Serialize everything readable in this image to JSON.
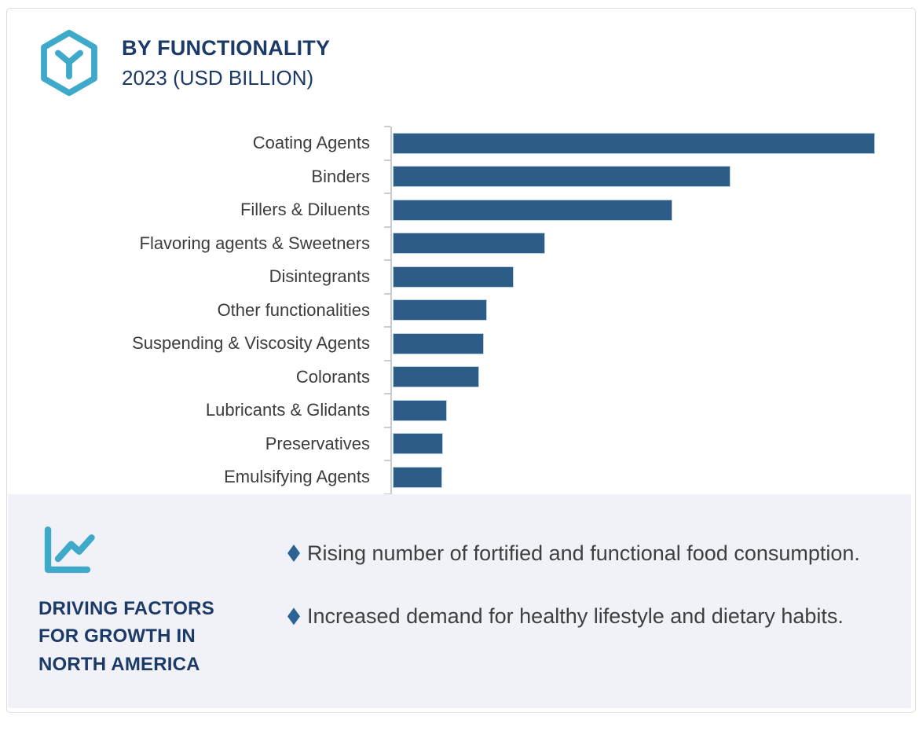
{
  "header": {
    "title": "BY FUNCTIONALITY",
    "subtitle": "2023 (USD BILLION)",
    "logo_icon": "hexagon-cube-icon"
  },
  "chart_data": {
    "type": "bar",
    "orientation": "horizontal",
    "title": "BY FUNCTIONALITY",
    "subtitle": "2023 (USD BILLION)",
    "unit": "USD Billion",
    "value_labels_shown": false,
    "value_axis_ticks_labeled": false,
    "gridlines": false,
    "categories": [
      "Coating Agents",
      "Binders",
      "Fillers & Diluents",
      "Flavoring agents & Sweetners",
      "Disintegrants",
      "Other functionalities",
      "Suspending & Viscosity Agents",
      "Colorants",
      "Lubricants & Glidants",
      "Preservatives",
      "Emulsifying Agents"
    ],
    "values_relative_pct_of_max": [
      100,
      70,
      57.8,
      31.3,
      24.8,
      19.2,
      18.7,
      17.6,
      10.9,
      10.1,
      9.9
    ],
    "bar_color": "#2d5c87",
    "bar_border_color": "#b9d3e3",
    "axis_color": "#cccccc"
  },
  "factors": {
    "heading": "DRIVING FACTORS FOR GROWTH IN NORTH AMERICA",
    "icon": "line-chart-icon",
    "bullet_shape": "diamond",
    "bullet_color": "#2d6295",
    "items": [
      "Rising number of fortified and functional food consumption.",
      "Increased demand for healthy lifestyle and dietary habits."
    ]
  },
  "colors": {
    "accent_cyan": "#3fa9c9",
    "navy": "#1c3a67",
    "text_dark": "#3c3c3c",
    "panel_background": "#f0f2f7",
    "card_border": "#dcdcdc"
  }
}
